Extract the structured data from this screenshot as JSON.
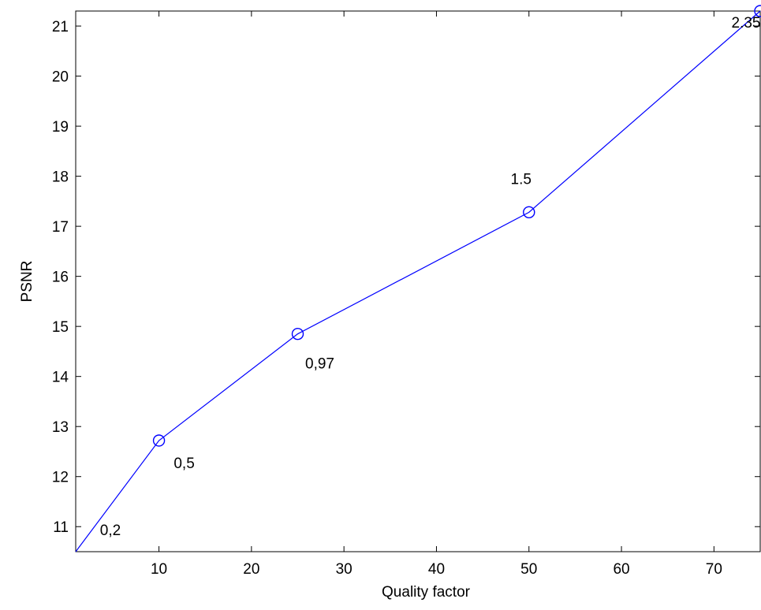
{
  "chart_data": {
    "type": "line",
    "title": "",
    "xlabel": "Quality factor",
    "ylabel": "PSNR",
    "xlim": [
      1,
      75
    ],
    "ylim": [
      10.5,
      21.3
    ],
    "xticks": [
      10,
      20,
      30,
      40,
      50,
      60,
      70
    ],
    "yticks": [
      11,
      12,
      13,
      14,
      15,
      16,
      17,
      18,
      19,
      20,
      21
    ],
    "grid": false,
    "legend": "none",
    "series": [
      {
        "color": "#0000ff",
        "marker": "circle",
        "points": [
          {
            "x": 1,
            "y": 10.5,
            "label": "0,2"
          },
          {
            "x": 10,
            "y": 12.72,
            "label": "0,5"
          },
          {
            "x": 25,
            "y": 14.85,
            "label": "0,97"
          },
          {
            "x": 50,
            "y": 17.28,
            "label": "1.5"
          },
          {
            "x": 75,
            "y": 21.3,
            "label": "2.35"
          }
        ]
      }
    ]
  }
}
